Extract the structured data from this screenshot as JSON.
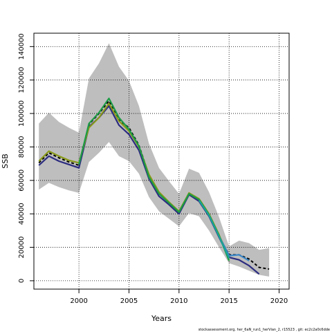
{
  "chart_data": {
    "type": "line",
    "title": "",
    "xlabel": "Years",
    "ylabel": "SSB",
    "xlim": [
      1995.5,
      2021
    ],
    "ylim": [
      -5000,
      148000
    ],
    "xticks": [
      2000,
      2005,
      2010,
      2015,
      2020
    ],
    "yticks": [
      0,
      20000,
      40000,
      60000,
      80000,
      100000,
      120000,
      140000
    ],
    "grid": true,
    "footnote": "stockassessment.org, her_6aN_run1_herVian_2, r15523 , git: ec2c2a0c6dde",
    "colors": {
      "band": "#bebebe",
      "black": "#000000",
      "darkblue": "#2b2b80",
      "lightblue": "#3a86c8",
      "olive": "#8a9a1a",
      "green": "#1c9b45",
      "teal": "#1aa39a"
    },
    "band": {
      "x": [
        1996,
        1997,
        1998,
        1999,
        2000,
        2001,
        2002,
        2003,
        2004,
        2005,
        2006,
        2007,
        2008,
        2009,
        2010,
        2011,
        2012,
        2013,
        2014,
        2015,
        2016,
        2017,
        2018,
        2019
      ],
      "upper": [
        94000,
        100500,
        95000,
        91500,
        88500,
        121000,
        130000,
        142000,
        128000,
        119500,
        104500,
        82000,
        67500,
        59500,
        52000,
        67000,
        64500,
        53000,
        38000,
        20500,
        24000,
        22500,
        18500,
        19500
      ],
      "lower": [
        54500,
        58500,
        56000,
        54000,
        52500,
        71000,
        76500,
        83000,
        74500,
        71500,
        64000,
        50000,
        41500,
        37000,
        32500,
        40500,
        38500,
        30000,
        20000,
        10500,
        8500,
        6000,
        3500,
        2500
      ]
    },
    "series": [
      {
        "color_key": "black",
        "dashed": true,
        "x": [
          1996,
          1997,
          1998,
          1999,
          2000,
          2001,
          2002,
          2003,
          2004,
          2005,
          2006,
          2007,
          2008,
          2009,
          2010,
          2011,
          2012,
          2013,
          2014,
          2015,
          2016,
          2017,
          2018,
          2019
        ],
        "values": [
          70500,
          76500,
          73500,
          71000,
          69000,
          93500,
          100000,
          107500,
          96000,
          91500,
          81000,
          63000,
          52500,
          46500,
          41000,
          52000,
          48500,
          39000,
          26500,
          15500,
          15500,
          13000,
          8000,
          7000
        ]
      },
      {
        "color_key": "darkblue",
        "dashed": false,
        "x": [
          1996,
          1997,
          1998,
          1999,
          2000,
          2001,
          2002,
          2003,
          2004,
          2005,
          2006,
          2007,
          2008,
          2009,
          2010,
          2011,
          2012,
          2013,
          2014,
          2015,
          2016,
          2017,
          2018
        ],
        "values": [
          69000,
          74500,
          71500,
          69500,
          67500,
          92000,
          97500,
          104500,
          93000,
          87500,
          78000,
          61000,
          50500,
          45500,
          40000,
          51500,
          47500,
          38500,
          26000,
          14000,
          12500,
          9000,
          4000
        ]
      },
      {
        "color_key": "lightblue",
        "dashed": false,
        "x": [
          2014,
          2015,
          2016,
          2017
        ],
        "values": [
          27000,
          15000,
          15500,
          12000
        ]
      },
      {
        "color_key": "olive",
        "dashed": false,
        "x": [
          1996,
          1997,
          1998,
          1999,
          2000,
          2001,
          2002,
          2003,
          2004,
          2005,
          2006,
          2007,
          2008,
          2009,
          2010,
          2011,
          2012,
          2013,
          2014,
          2015
        ],
        "values": [
          71500,
          77500,
          74500,
          72000,
          70500,
          91500,
          97500,
          106000,
          95500,
          89500,
          80000,
          63500,
          53000,
          47000,
          41500,
          52500,
          49000,
          40000,
          27500,
          12000
        ]
      },
      {
        "color_key": "green",
        "dashed": false,
        "x": [
          2000,
          2001,
          2002,
          2003,
          2004,
          2005,
          2006,
          2007,
          2008,
          2009,
          2010,
          2011,
          2012,
          2013,
          2014,
          2015
        ],
        "values": [
          69500,
          94000,
          100500,
          109000,
          97500,
          90500,
          80500,
          62000,
          52000,
          46500,
          41000,
          52000,
          48500,
          39500,
          27000,
          12000
        ]
      },
      {
        "color_key": "teal",
        "dashed": false,
        "x": [
          2012,
          2013,
          2014,
          2015
        ],
        "values": [
          48000,
          39000,
          26500,
          13500
        ]
      }
    ]
  }
}
